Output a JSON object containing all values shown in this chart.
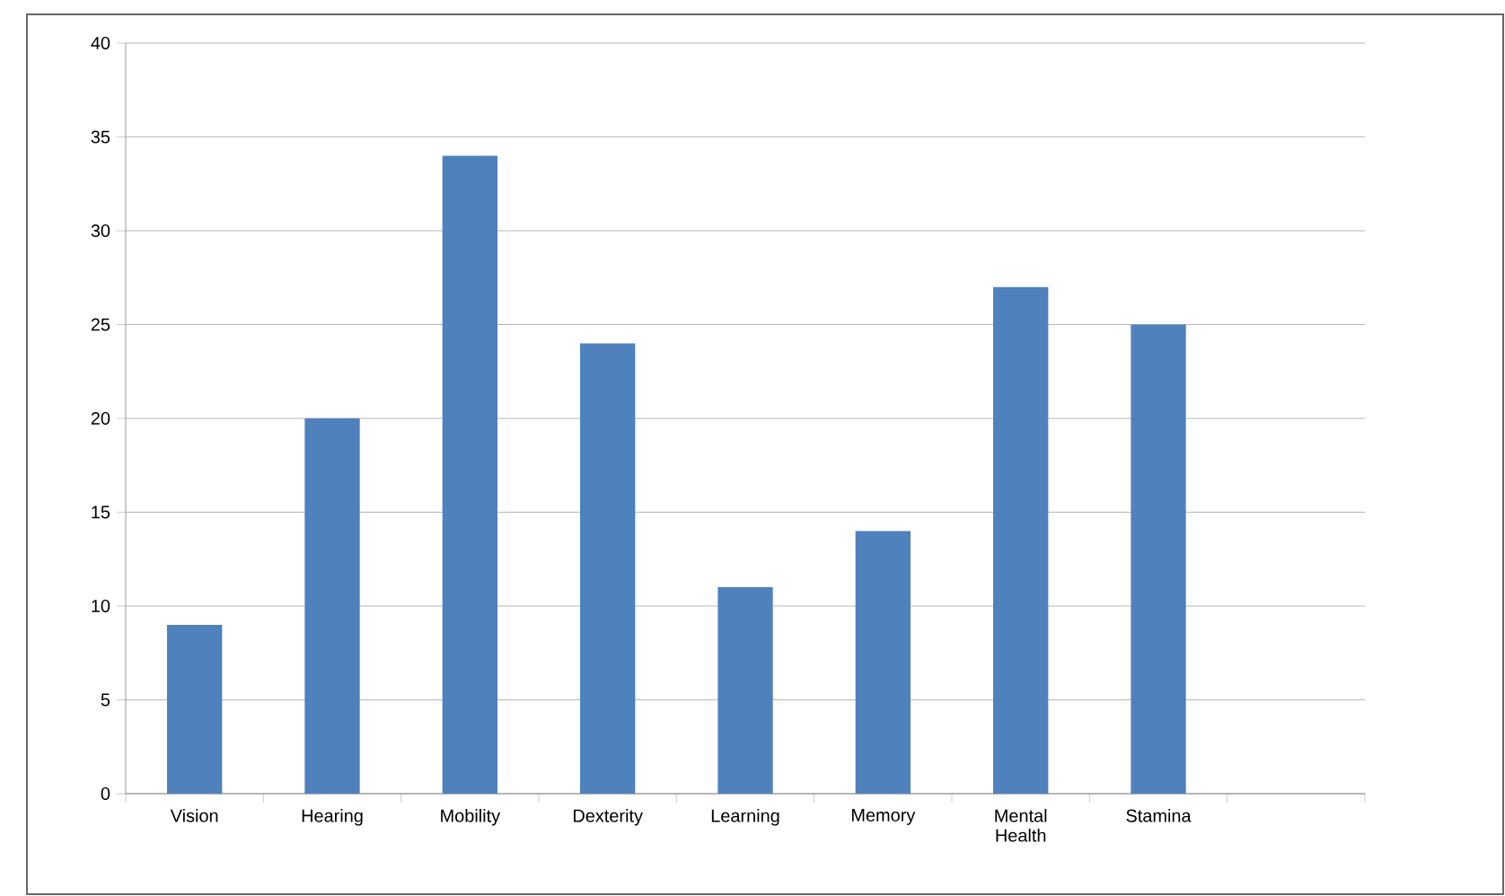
{
  "chart_data": {
    "type": "bar",
    "categories": [
      "Vision",
      "Hearing",
      "Mobility",
      "Dexterity",
      "Learning",
      "Memory",
      "Mental Health",
      "Stamina",
      null
    ],
    "values": [
      9,
      20,
      34,
      24,
      11,
      14,
      27,
      25,
      null
    ],
    "color": "#4f81bd",
    "ylim": [
      0,
      40
    ],
    "yticks": [
      0,
      5,
      10,
      15,
      20,
      25,
      30,
      35,
      40
    ],
    "grid": "y"
  }
}
